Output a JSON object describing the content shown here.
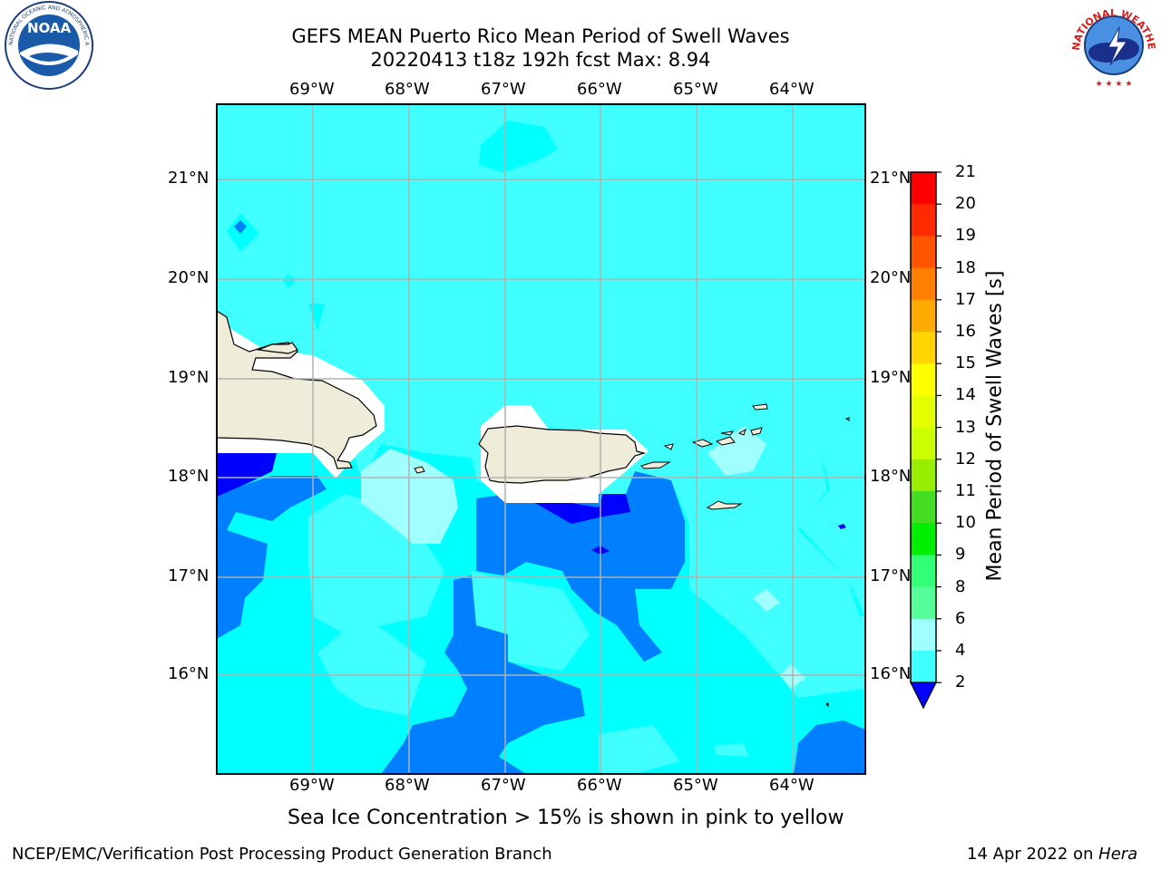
{
  "header": {
    "title_line1": "GEFS MEAN Puerto Rico Mean Period of Swell Waves",
    "title_line2": "20220413 t18z 192h fcst   Max: 8.94"
  },
  "logos": {
    "left": {
      "name": "NOAA",
      "text": "NOAA",
      "ring_text": "NATIONAL OCEANIC AND ATMOSPHERIC ADMINISTRATION · U.S. DEPARTMENT OF COMMERCE",
      "color": "#1a5aa8"
    },
    "right": {
      "name": "National Weather Service",
      "ring_text": "NATIONAL WEATHER SERVICE",
      "color": "#d81e1e"
    }
  },
  "map": {
    "lon_labels": [
      "69°W",
      "68°W",
      "67°W",
      "66°W",
      "65°W",
      "64°W"
    ],
    "lat_labels": [
      "21°N",
      "20°N",
      "19°N",
      "18°N",
      "17°N",
      "16°N"
    ],
    "colors": {
      "ocean_4_6": "#00ffff",
      "ocean_6_8": "#40ffff",
      "ocean_8_9": "#a0ffff",
      "ocean_2_4": "#0080ff",
      "ocean_lt2": "#0000ff",
      "land": "#efedd9",
      "no_data": "#ffffff",
      "grid": "#b0b0b0"
    }
  },
  "colorbar": {
    "title": "Mean Period of Swell Waves [s]",
    "levels": [
      "21",
      "20",
      "19",
      "18",
      "17",
      "16",
      "15",
      "14",
      "13",
      "12",
      "11",
      "10",
      "9",
      "8",
      "6",
      "4",
      "2"
    ],
    "colors": [
      "#ff0000",
      "#ff2a00",
      "#ff5500",
      "#ff8000",
      "#ffaa00",
      "#ffd400",
      "#ffff00",
      "#e6ff00",
      "#ccff00",
      "#99ee00",
      "#44dd22",
      "#00ee00",
      "#33ff77",
      "#55ff99",
      "#a0ffff",
      "#40ffff",
      "#00ffff",
      "#0080ff",
      "#0000ff"
    ],
    "extend_color": "#0000ff"
  },
  "footer": {
    "sea_ice_note": "Sea Ice Concentration > 15% is shown in pink to yellow",
    "branch": "NCEP/EMC/Verification Post Processing Product Generation Branch",
    "date": "14 Apr 2022 on ",
    "machine": "Hera"
  }
}
